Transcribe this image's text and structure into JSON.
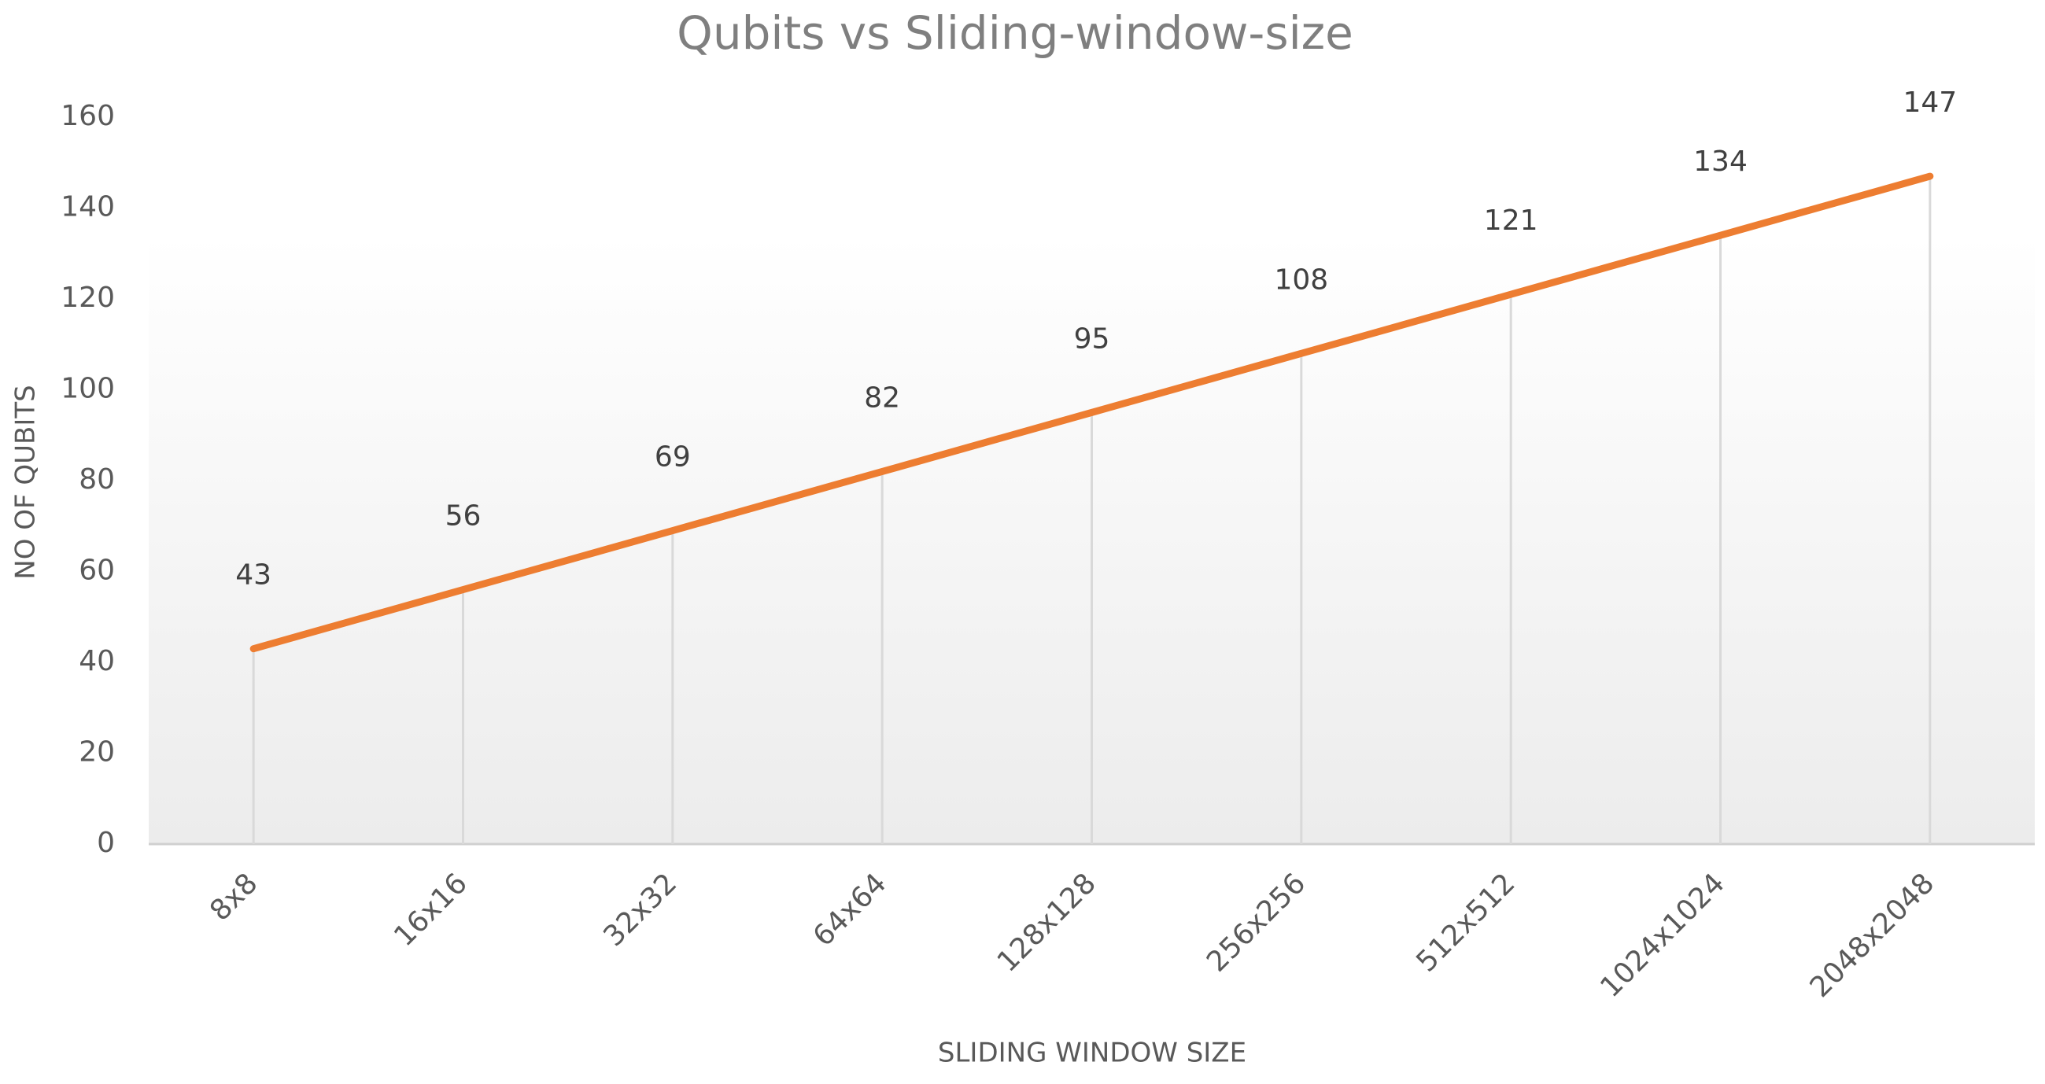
{
  "chart_data": {
    "type": "line",
    "title": "Qubits vs Sliding-window-size",
    "x_label": "SLIDING WINDOW SIZE",
    "y_label": "NO OF QUBITS",
    "categories": [
      "8x8",
      "16x16",
      "32x32",
      "64x64",
      "128x128",
      "256x256",
      "512x512",
      "1024x1024",
      "2048x2048"
    ],
    "values": [
      43,
      56,
      69,
      82,
      95,
      108,
      121,
      134,
      147
    ],
    "color": "#ed7d31",
    "drop_lines": true,
    "ylim": [
      0,
      160
    ],
    "yticks": [
      0,
      20,
      40,
      60,
      80,
      100,
      120,
      140,
      160
    ]
  }
}
